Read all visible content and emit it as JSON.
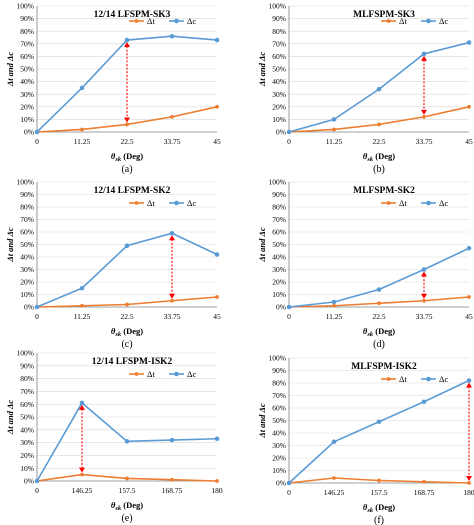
{
  "colors": {
    "dt": "#ed7d31",
    "dc": "#5b9bd5",
    "arrow": "#ff0000"
  },
  "y_ticks": [
    "0%",
    "10%",
    "20%",
    "30%",
    "40%",
    "50%",
    "60%",
    "70%",
    "80%",
    "90%",
    "100%"
  ],
  "chart_data": [
    {
      "type": "line",
      "panel": "(a)",
      "title": "12/14 LFSPM-SK3",
      "xlabel_main": "θ",
      "xlabel_sub": "sk",
      "xlabel_unit": " (Deg)",
      "ylabel": "Δt and Δc",
      "categories": [
        "0",
        "11.25",
        "22.5",
        "33.75",
        "45"
      ],
      "ylim": [
        0,
        100
      ],
      "legend": "top-right",
      "series": [
        {
          "name": "Δt",
          "values": [
            0,
            2,
            6,
            12,
            20
          ]
        },
        {
          "name": "Δc",
          "values": [
            0,
            35,
            73,
            76,
            73
          ]
        }
      ],
      "arrow_category_index": 2
    },
    {
      "type": "line",
      "panel": "(b)",
      "title": "MLFSPM-SK3",
      "xlabel_main": "θ",
      "xlabel_sub": "sk",
      "xlabel_unit": " (Deg)",
      "ylabel": "Δt and Δc",
      "categories": [
        "0",
        "11.25",
        "22.5",
        "33.75",
        "45"
      ],
      "ylim": [
        0,
        100
      ],
      "legend": "top-right",
      "series": [
        {
          "name": "Δt",
          "values": [
            0,
            2,
            6,
            12,
            20
          ]
        },
        {
          "name": "Δc",
          "values": [
            0,
            10,
            34,
            62,
            71
          ]
        }
      ],
      "arrow_category_index": 3
    },
    {
      "type": "line",
      "panel": "(c)",
      "title": "12/14 LFSPM-SK2",
      "xlabel_main": "θ",
      "xlabel_sub": "sk",
      "xlabel_unit": " (Deg)",
      "ylabel": "Δt and Δc",
      "categories": [
        "0",
        "11.25",
        "22.5",
        "33.75",
        "45"
      ],
      "ylim": [
        0,
        100
      ],
      "legend": "top-right",
      "series": [
        {
          "name": "Δt",
          "values": [
            0,
            1,
            2,
            5,
            8
          ]
        },
        {
          "name": "Δc",
          "values": [
            0,
            15,
            49,
            59,
            42
          ]
        }
      ],
      "arrow_category_index": 3
    },
    {
      "type": "line",
      "panel": "(d)",
      "title": "MLFSPM-SK2",
      "xlabel_main": "θ",
      "xlabel_sub": "sk",
      "xlabel_unit": " (Deg)",
      "ylabel": "Δt and Δc",
      "categories": [
        "0",
        "11.25",
        "22.5",
        "33.75",
        "45"
      ],
      "ylim": [
        0,
        100
      ],
      "legend": "top-right",
      "series": [
        {
          "name": "Δt",
          "values": [
            0,
            1,
            3,
            5,
            8
          ]
        },
        {
          "name": "Δc",
          "values": [
            0,
            4,
            14,
            30,
            47
          ]
        }
      ],
      "arrow_category_index": 3
    },
    {
      "type": "line",
      "panel": "(e)",
      "title": "12/14 LFSPM-ISK2",
      "xlabel_main": "θ",
      "xlabel_sub": "sk",
      "xlabel_unit": " (Deg)",
      "ylabel": "Δt and Δc",
      "categories": [
        "0",
        "146.25",
        "157.5",
        "168.75",
        "180"
      ],
      "ylim": [
        0,
        100
      ],
      "legend": "top-right",
      "series": [
        {
          "name": "Δt",
          "values": [
            0,
            5,
            2,
            1,
            0
          ]
        },
        {
          "name": "Δc",
          "values": [
            0,
            61,
            31,
            32,
            33
          ]
        }
      ],
      "arrow_category_index": 1
    },
    {
      "type": "line",
      "panel": "(f)",
      "title": "MLFSPM-ISK2",
      "xlabel_main": "θ",
      "xlabel_sub": "sk",
      "xlabel_unit": " (Deg)",
      "ylabel": "Δt and Δc",
      "categories": [
        "0",
        "146.25",
        "157.5",
        "168.75",
        "180"
      ],
      "ylim": [
        0,
        100
      ],
      "legend": "top-right",
      "series": [
        {
          "name": "Δt",
          "values": [
            0,
            4,
            2,
            1,
            0
          ]
        },
        {
          "name": "Δc",
          "values": [
            0,
            33,
            49,
            65,
            82
          ]
        }
      ],
      "arrow_category_index": 4
    }
  ]
}
